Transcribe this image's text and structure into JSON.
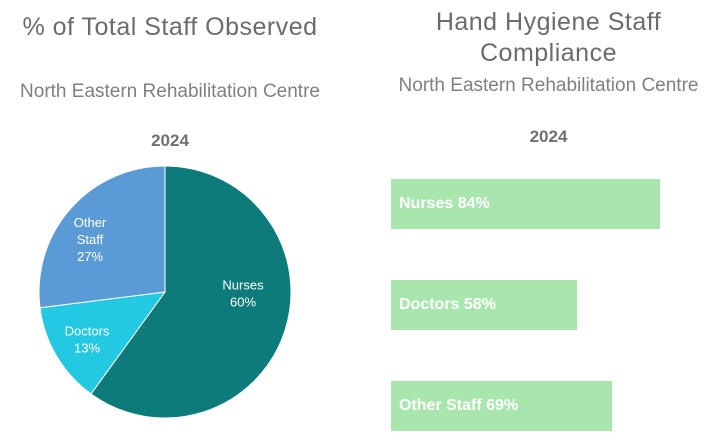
{
  "pie_chart": {
    "title": "% of Total Staff Observed",
    "subtitle": "North Eastern Rehabilitation Centre",
    "year": "2024"
  },
  "bar_chart": {
    "title": "Hand Hygiene Staff Compliance",
    "subtitle": "North Eastern Rehabilitation Centre",
    "year": "2024"
  },
  "colors": {
    "nurses": "#0e7b7b",
    "doctors": "#23c8e3",
    "other_staff": "#5b9bd5",
    "bar": "#a9e6ae"
  },
  "chart_data": [
    {
      "type": "pie",
      "title": "% of Total Staff Observed",
      "subtitle": "North Eastern Rehabilitation Centre 2024",
      "slices": [
        {
          "label": "Nurses",
          "value": 60,
          "value_label": "60%",
          "color": "#0e7b7b"
        },
        {
          "label": "Doctors",
          "value": 13,
          "value_label": "13%",
          "color": "#23c8e3"
        },
        {
          "label": "Other Staff",
          "value": 27,
          "value_label": "27%",
          "color": "#5b9bd5"
        }
      ]
    },
    {
      "type": "bar",
      "orientation": "horizontal",
      "title": "Hand Hygiene Staff Compliance",
      "subtitle": "North Eastern Rehabilitation Centre 2024",
      "categories": [
        "Nurses",
        "Doctors",
        "Other Staff"
      ],
      "values": [
        84,
        58,
        69
      ],
      "labels": [
        "Nurses 84%",
        "Doctors 58%",
        "Other Staff 69%"
      ]
    }
  ]
}
